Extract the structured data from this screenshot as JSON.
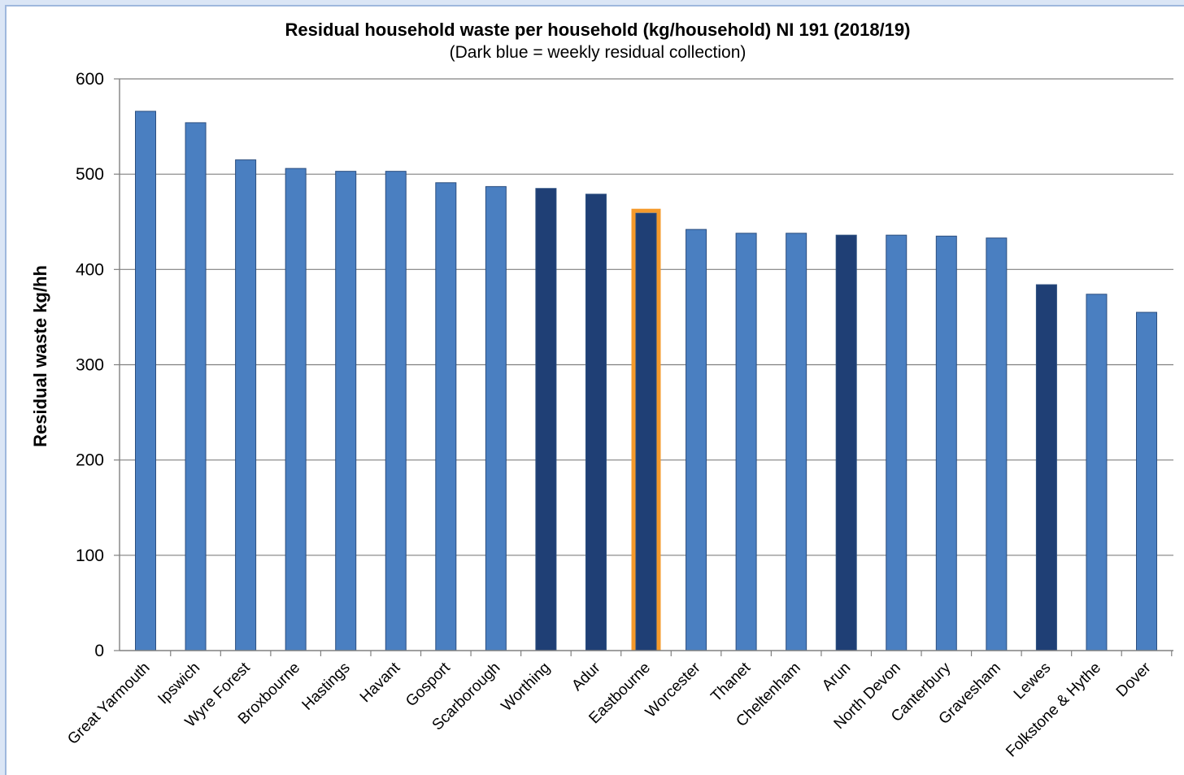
{
  "chart_data": {
    "type": "bar",
    "title": "Residual household waste per household (kg/household) NI 191 (2018/19)",
    "subtitle": "(Dark blue = weekly residual collection)",
    "xlabel": "",
    "ylabel": "Residual waste kg/hh",
    "ylim": [
      0,
      600
    ],
    "yticks": [
      0,
      100,
      200,
      300,
      400,
      500,
      600
    ],
    "grid": true,
    "legend": "none",
    "colors": {
      "standard": "#4a7fc1",
      "weekly": "#1f3f75",
      "highlight_outline": "#f59a2b"
    },
    "categories": [
      "Great Yarmouth",
      "Ipswich",
      "Wyre Forest",
      "Broxbourne",
      "Hastings",
      "Havant",
      "Gosport",
      "Scarborough",
      "Worthing",
      "Adur",
      "Eastbourne",
      "Worcester",
      "Thanet",
      "Cheltenham",
      "Arun",
      "North Devon",
      "Canterbury",
      "Gravesham",
      "Lewes",
      "Folkstone & Hythe",
      "Dover"
    ],
    "values": [
      566,
      554,
      515,
      506,
      503,
      503,
      491,
      487,
      485,
      479,
      459,
      442,
      438,
      438,
      436,
      436,
      435,
      433,
      384,
      374,
      355
    ],
    "weekly": [
      false,
      false,
      false,
      false,
      false,
      false,
      false,
      false,
      true,
      true,
      true,
      false,
      false,
      false,
      true,
      false,
      false,
      false,
      true,
      false,
      false
    ],
    "highlighted": "Eastbourne"
  }
}
